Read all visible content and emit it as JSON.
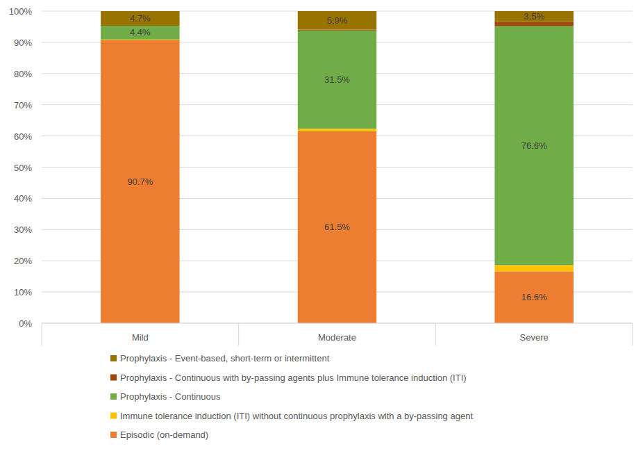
{
  "chart_data": {
    "type": "bar",
    "stacked": true,
    "grid": true,
    "legend": "bottom",
    "data_labels": true,
    "categories": [
      "Mild",
      "Moderate",
      "Severe"
    ],
    "ylim": [
      0,
      100
    ],
    "yticks": [
      {
        "value": 0,
        "label": "0%"
      },
      {
        "value": 10,
        "label": "10%"
      },
      {
        "value": 20,
        "label": "20%"
      },
      {
        "value": 30,
        "label": "30%"
      },
      {
        "value": 40,
        "label": "40%"
      },
      {
        "value": 50,
        "label": "50%"
      },
      {
        "value": 60,
        "label": "60%"
      },
      {
        "value": 70,
        "label": "70%"
      },
      {
        "value": 80,
        "label": "80%"
      },
      {
        "value": 90,
        "label": "90%"
      },
      {
        "value": 100,
        "label": "100%"
      }
    ],
    "series": [
      {
        "name": "Episodic (on-demand)",
        "color": "#ed7d31",
        "values": [
          90.7,
          61.5,
          16.6
        ],
        "value_labels": [
          "90.7%",
          "61.5%",
          "16.6%"
        ]
      },
      {
        "name": "Immune tolerance induction (ITI) without continuous prophylaxis with a by-passing agent",
        "color": "#ffc000",
        "values": [
          0.2,
          0.8,
          2.0
        ],
        "value_labels": [
          null,
          null,
          null
        ]
      },
      {
        "name": "Prophylaxis - Continuous",
        "color": "#70ad47",
        "values": [
          4.4,
          31.5,
          76.6
        ],
        "value_labels": [
          "4.4%",
          "31.5%",
          "76.6%"
        ]
      },
      {
        "name": "Prophylaxis - Continuous with by-passing agents plus Immune tolerance induction (ITI)",
        "color": "#9e480e",
        "values": [
          0,
          0.3,
          1.3
        ],
        "value_labels": [
          null,
          null,
          null
        ]
      },
      {
        "name": "Prophylaxis - Event-based, short-term or intermittent",
        "color": "#997300",
        "values": [
          4.7,
          5.9,
          3.5
        ],
        "value_labels": [
          "4.7%",
          "5.9%",
          "3.5%"
        ]
      }
    ]
  }
}
